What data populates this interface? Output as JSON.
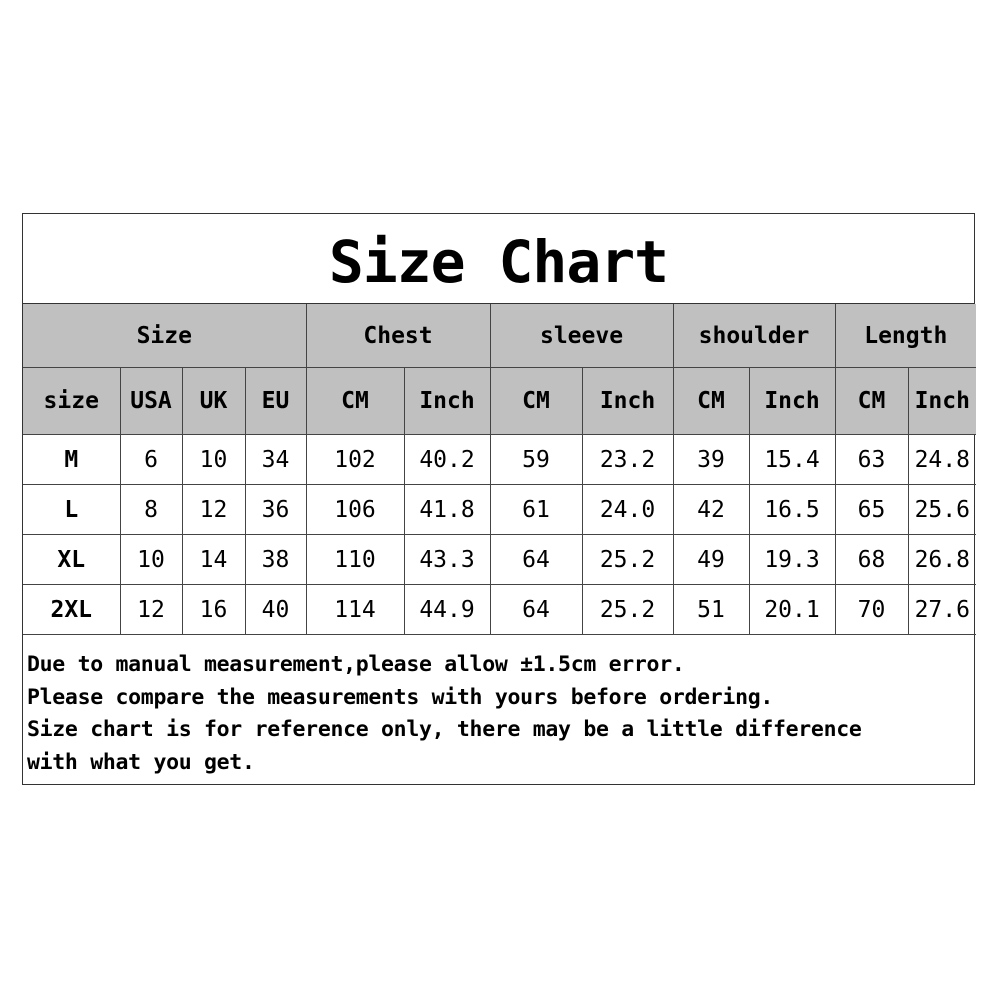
{
  "title": "Size Chart",
  "groups": [
    {
      "label": "Size",
      "span": 4
    },
    {
      "label": "Chest",
      "span": 2
    },
    {
      "label": "sleeve",
      "span": 2
    },
    {
      "label": "shoulder",
      "span": 2
    },
    {
      "label": "Length",
      "span": 2
    }
  ],
  "columns": [
    "size",
    "USA",
    "UK",
    "EU",
    "CM",
    "Inch",
    "CM",
    "Inch",
    "CM",
    "Inch",
    "CM",
    "Inch"
  ],
  "rows": [
    [
      "M",
      "6",
      "10",
      "34",
      "102",
      "40.2",
      "59",
      "23.2",
      "39",
      "15.4",
      "63",
      "24.8"
    ],
    [
      "L",
      "8",
      "12",
      "36",
      "106",
      "41.8",
      "61",
      "24.0",
      "42",
      "16.5",
      "65",
      "25.6"
    ],
    [
      "XL",
      "10",
      "14",
      "38",
      "110",
      "43.3",
      "64",
      "25.2",
      "49",
      "19.3",
      "68",
      "26.8"
    ],
    [
      "2XL",
      "12",
      "16",
      "40",
      "114",
      "44.9",
      "64",
      "25.2",
      "51",
      "20.1",
      "70",
      "27.6"
    ]
  ],
  "notes": [
    "Due to manual measurement,please allow ±1.5cm error.",
    "Please compare the measurements with yours before ordering.",
    "Size chart is for reference only, there may be a little difference",
    "with what you get."
  ],
  "colors": {
    "header_bg": "#c0c0c0",
    "border": "#444444"
  }
}
